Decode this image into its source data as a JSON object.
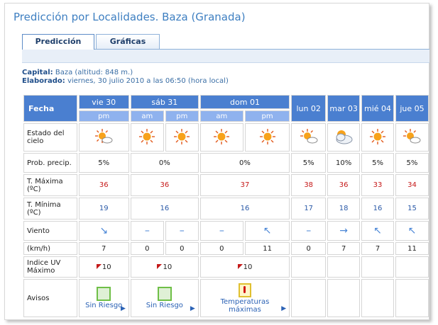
{
  "page": {
    "title": "Predicción por Localidades. Baza (Granada)"
  },
  "tabs": [
    {
      "label": "Predicción",
      "active": true
    },
    {
      "label": "Gráficas",
      "active": false
    }
  ],
  "meta": {
    "capital_label": "Capital:",
    "capital_value": "Baza (altitud: 848 m.)",
    "elaborado_label": "Elaborado:",
    "elaborado_value": "viernes, 30 julio 2010 a las 06:50 (hora local)"
  },
  "table": {
    "fecha_label": "Fecha",
    "days": [
      "vie 30",
      "sáb 31",
      "dom 01",
      "lun 02",
      "mar 03",
      "mié 04",
      "jue 05"
    ],
    "periods": [
      "pm",
      "am",
      "pm",
      "am",
      "pm"
    ],
    "row_labels": {
      "estado": "Estado del cielo",
      "prob": "Prob. precip.",
      "tmax": "T. Máxima (ºC)",
      "tmin": "T. Mínima (ºC)",
      "viento": "Viento",
      "kmh": "(km/h)",
      "uv": "Indice UV Máximo",
      "avisos": "Avisos"
    },
    "prob": [
      "5%",
      "0%",
      "0%",
      "5%",
      "10%",
      "5%",
      "5%"
    ],
    "tmax": [
      "36",
      "36",
      "37",
      "38",
      "36",
      "33",
      "34"
    ],
    "tmin": [
      "19",
      "16",
      "16",
      "17",
      "18",
      "16",
      "15"
    ],
    "wind_dir": [
      "↘",
      "–",
      "–",
      "–",
      "↖",
      "–",
      "→",
      "↖",
      "↖"
    ],
    "kmh": [
      "7",
      "0",
      "0",
      "0",
      "11",
      "0",
      "7",
      "7",
      "11"
    ],
    "uv": [
      "10",
      "10",
      "10"
    ],
    "avisos": [
      {
        "label": "Sin Riesgo",
        "icon": "green-square-icon"
      },
      {
        "label": "Sin Riesgo",
        "icon": "green-square-icon"
      },
      {
        "label": "Temperaturas máximas",
        "icon": "thermometer-icon"
      }
    ]
  },
  "colors": {
    "header_blue": "#4a7fd0",
    "subheader_blue": "#8fb2ee",
    "title_blue": "#3e7fc1",
    "tmax_red": "#c61a1a",
    "tmin_blue": "#2b5aa8"
  }
}
